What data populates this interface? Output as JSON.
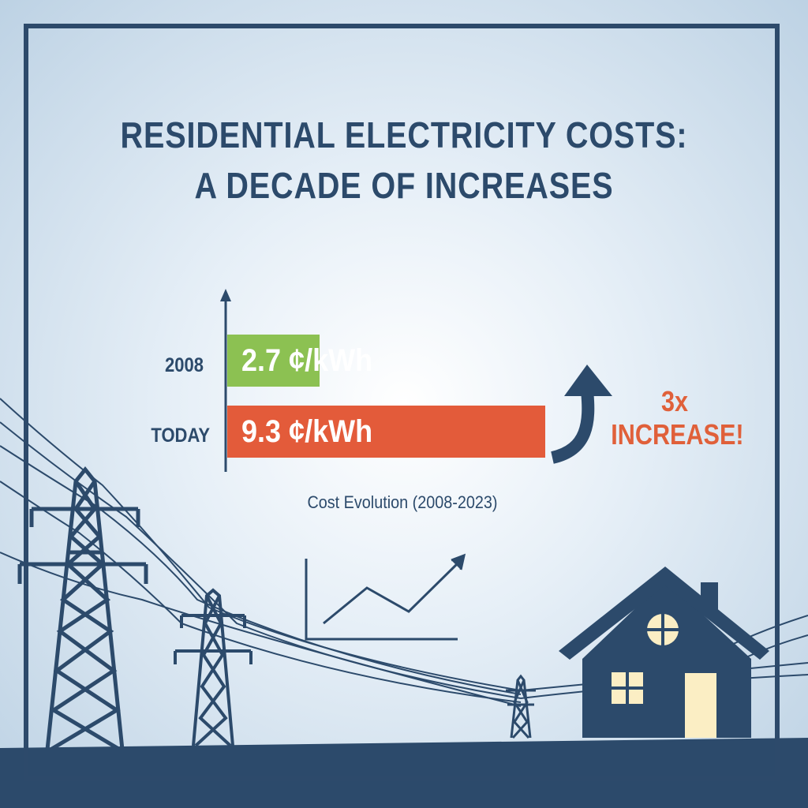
{
  "title_line1": "RESIDENTIAL ELECTRICITY COSTS:",
  "title_line2": "A DECADE OF INCREASES",
  "chart_data": {
    "type": "bar",
    "orientation": "horizontal",
    "categories": [
      "2008",
      "TODAY"
    ],
    "values": [
      2.7,
      9.3
    ],
    "value_labels": [
      "2.7 ¢/kWh",
      "9.3 ¢/kWh"
    ],
    "unit": "¢/kWh",
    "colors": [
      "#8cc152",
      "#e35b3a"
    ],
    "xlim": [
      0,
      9.8
    ],
    "caption": "Cost Evolution (2008-2023)",
    "annotation_line1": "3x",
    "annotation_line2": "INCREASE!"
  },
  "colors": {
    "navy": "#2c4a6b",
    "accent": "#e0603a",
    "window": "#fbeec4"
  },
  "icons": [
    "trend-up-arrow-icon",
    "line-chart-icon",
    "transmission-tower-icon",
    "house-icon"
  ]
}
